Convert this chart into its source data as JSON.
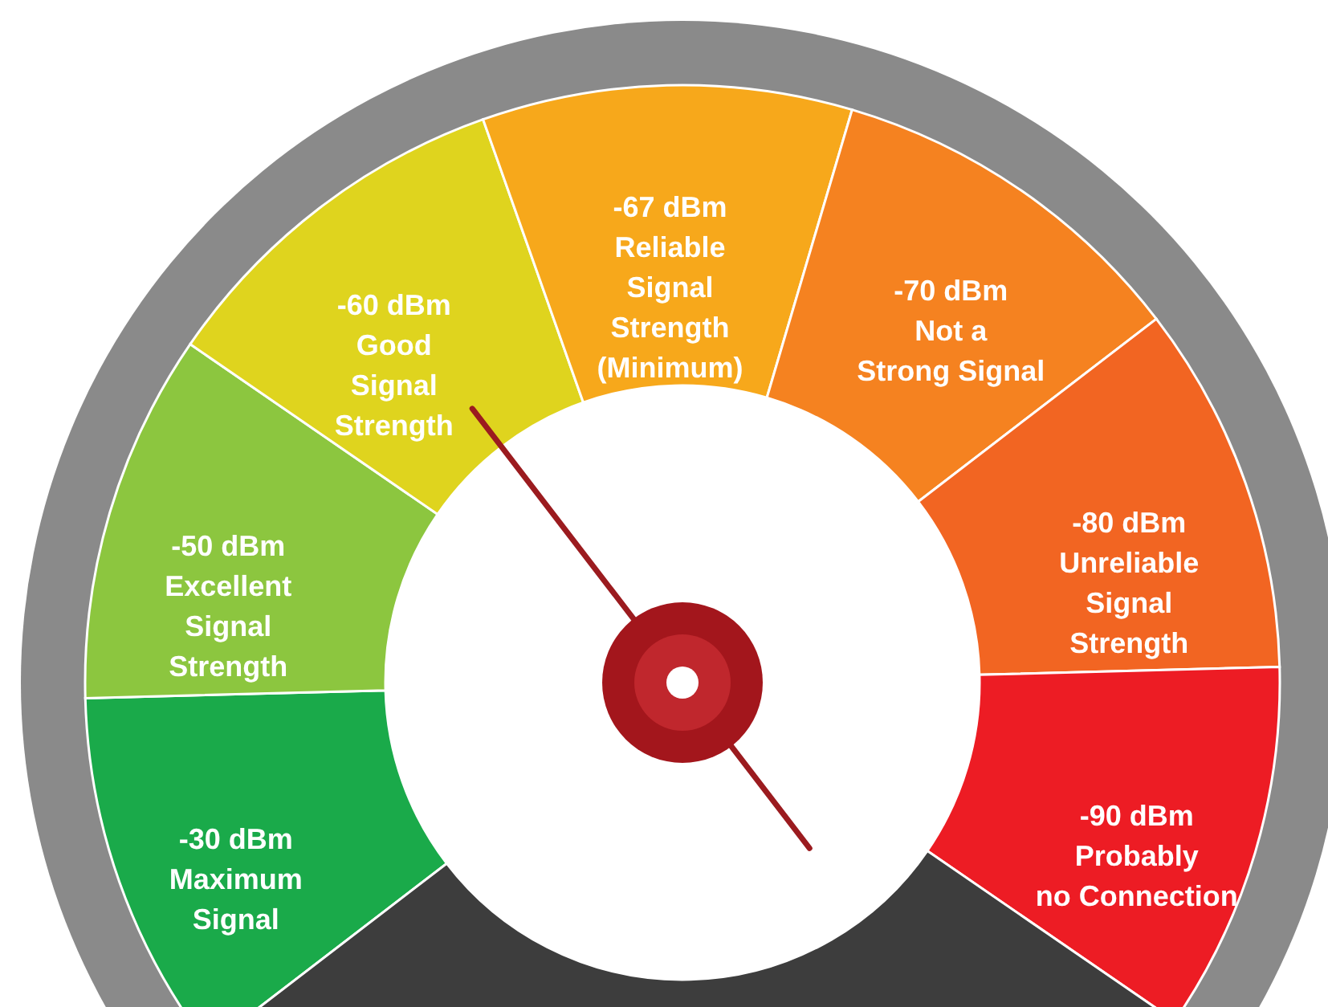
{
  "chart_data": {
    "type": "donut",
    "categories": [
      "-30 dBm\nMaximum\nSignal",
      "-50 dBm\nExcellent\nSignal\nStrength",
      "-60 dBm\nGood\nSignal\nStrength",
      "-67 dBm\nReliable\nSignal\nStrength\n(Minimum)",
      "-70 dBm\nNot  a\nStrong Signal",
      "-80 dBm\nUnreliable\nSignal\nStrength",
      "-90 dBm\nProbably\nno Connection",
      null
    ],
    "values": [
      10,
      10,
      10,
      10,
      10,
      10,
      10,
      30
    ],
    "colors": [
      "#1aaa4a",
      "#8cc63f",
      "#dfd41e",
      "#f7a81b",
      "#f58220",
      "#f26522",
      "#ed1c24",
      "#3d3d3d"
    ],
    "needle": "-60 dBm\nGood\nSignal\nStrength"
  }
}
